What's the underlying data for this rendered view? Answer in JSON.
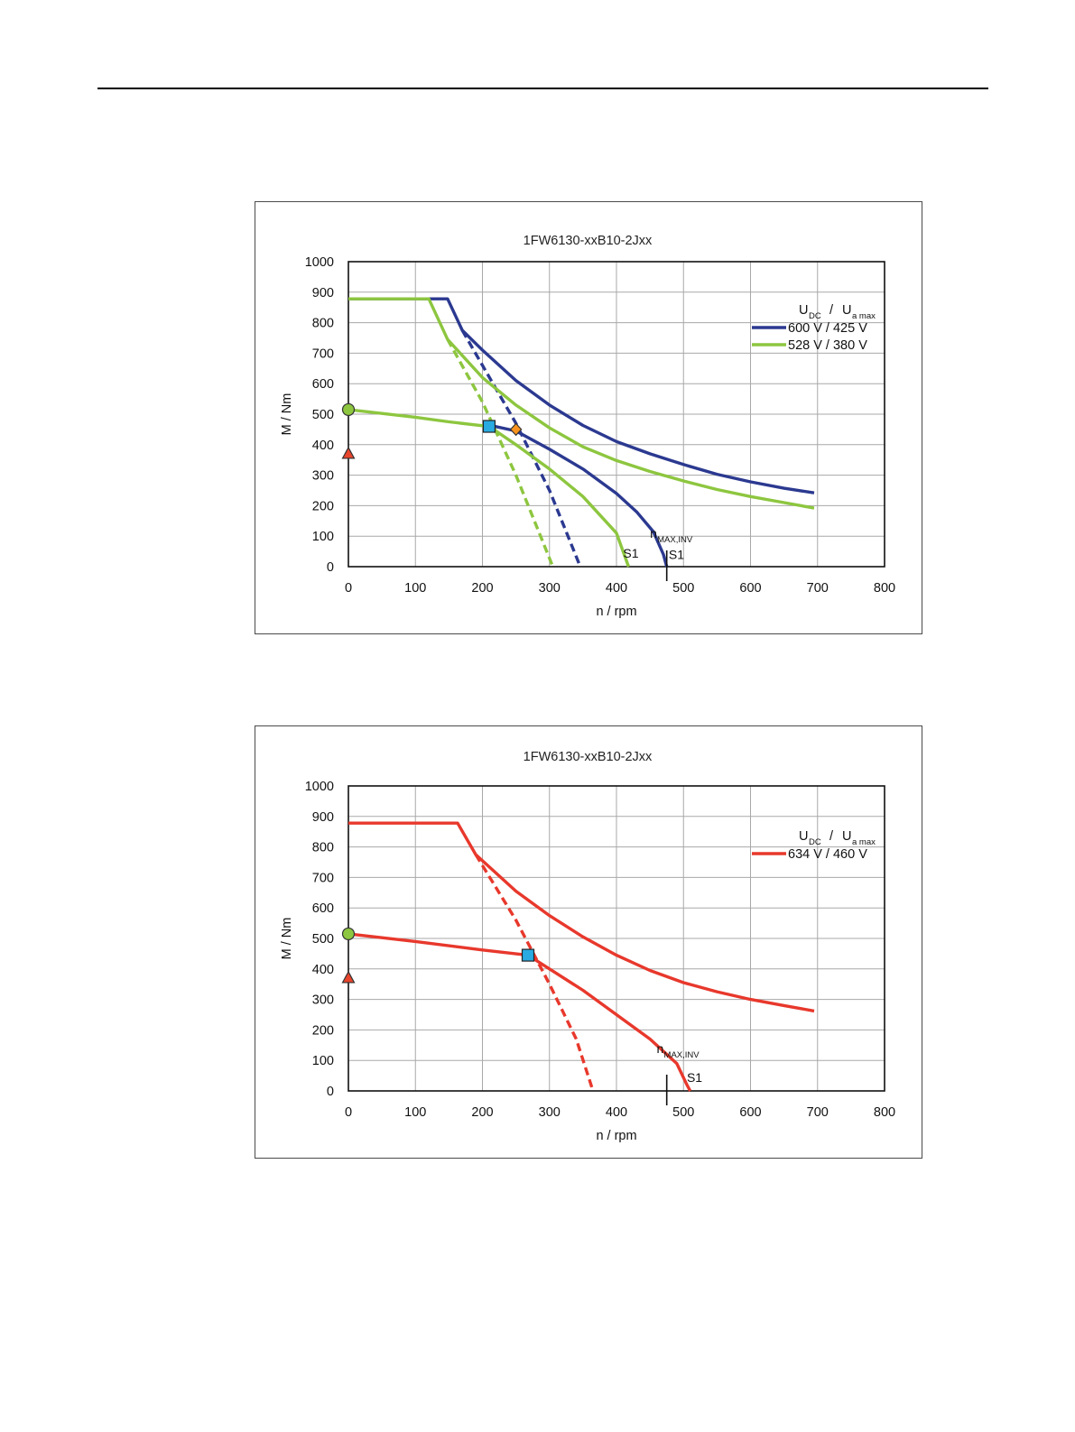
{
  "charts": [
    {
      "title": "1FW6130-xxB10-2Jxx",
      "xlabel": "n / rpm",
      "ylabel": "M / Nm",
      "xticks": [
        "0",
        "100",
        "200",
        "300",
        "400",
        "500",
        "600",
        "700",
        "800"
      ],
      "yticks": [
        "0",
        "100",
        "200",
        "300",
        "400",
        "500",
        "600",
        "700",
        "800",
        "900",
        "1000"
      ],
      "legend_head_u": "U",
      "legend_head_u_sub": "DC",
      "legend_head_sep": "/",
      "legend_head_ua": "U",
      "legend_head_ua_sub": "a max",
      "legend_items": [
        "600 V / 425 V",
        "528 V / 380 V"
      ],
      "ann_nmax": "n",
      "ann_nmax_sub": "MAX,INV",
      "ann_s1_a": "S1",
      "ann_s1_b": "S1"
    },
    {
      "title": "1FW6130-xxB10-2Jxx",
      "xlabel": "n / rpm",
      "ylabel": "M / Nm",
      "xticks": [
        "0",
        "100",
        "200",
        "300",
        "400",
        "500",
        "600",
        "700",
        "800"
      ],
      "yticks": [
        "0",
        "100",
        "200",
        "300",
        "400",
        "500",
        "600",
        "700",
        "800",
        "900",
        "1000"
      ],
      "legend_head_u": "U",
      "legend_head_u_sub": "DC",
      "legend_head_sep": "/",
      "legend_head_ua": "U",
      "legend_head_ua_sub": "a max",
      "legend_items": [
        "634 V / 460 V"
      ],
      "ann_nmax": "n",
      "ann_nmax_sub": "MAX,INV",
      "ann_s1_a": "S1"
    }
  ],
  "chart_data": [
    {
      "type": "line",
      "title": "1FW6130-xxB10-2Jxx",
      "xlabel": "n / rpm",
      "ylabel": "M / Nm",
      "xlim": [
        0,
        800
      ],
      "ylim": [
        0,
        1000
      ],
      "grid": true,
      "legend_position": "top-right",
      "colors": {
        "series_600": "#2b3990",
        "series_528": "#8dc63f"
      },
      "series": [
        {
          "name": "600 V / 425 V",
          "style": "solid",
          "color": "#2b3990",
          "x": [
            0,
            148,
            170,
            200,
            250,
            300,
            350,
            400,
            450,
            500,
            550,
            600,
            650,
            695
          ],
          "y": [
            878,
            878,
            775,
            710,
            610,
            530,
            463,
            410,
            370,
            335,
            303,
            278,
            257,
            242
          ]
        },
        {
          "name": "600 V / 425 V",
          "style": "solid",
          "color": "#2b3990",
          "x": [
            208,
            250,
            300,
            350,
            400,
            430,
            455,
            470,
            475
          ],
          "y": [
            465,
            445,
            385,
            320,
            240,
            180,
            115,
            40,
            0
          ]
        },
        {
          "style": "dashed",
          "color": "#2b3990",
          "x": [
            170,
            200,
            250,
            300,
            346
          ],
          "y": [
            775,
            660,
            470,
            250,
            0
          ]
        },
        {
          "name": "528 V / 380 V",
          "style": "solid",
          "color": "#8dc63f",
          "x": [
            0,
            120,
            148,
            200,
            250,
            300,
            350,
            400,
            450,
            500,
            550,
            600,
            650,
            695
          ],
          "y": [
            878,
            878,
            745,
            620,
            530,
            455,
            393,
            348,
            312,
            281,
            253,
            230,
            210,
            192
          ]
        },
        {
          "name": "528 V / 380 V",
          "style": "solid",
          "color": "#8dc63f",
          "x": [
            0,
            100,
            150,
            200,
            210,
            250,
            300,
            350,
            400,
            418
          ],
          "y": [
            515,
            490,
            475,
            462,
            460,
            400,
            320,
            230,
            110,
            0
          ]
        },
        {
          "style": "dashed",
          "color": "#8dc63f",
          "x": [
            148,
            200,
            250,
            305
          ],
          "y": [
            745,
            540,
            300,
            0
          ]
        }
      ],
      "markers": [
        {
          "shape": "circle",
          "color": "#8dc63f",
          "x": 0,
          "y": 515
        },
        {
          "shape": "triangle",
          "color": "#e8452c",
          "x": 0,
          "y": 370
        },
        {
          "shape": "square",
          "color": "#29abe2",
          "x": 210,
          "y": 460
        },
        {
          "shape": "diamond",
          "color": "#f7931e",
          "x": 250,
          "y": 450
        }
      ],
      "vline_nmax_inv": 475
    },
    {
      "type": "line",
      "title": "1FW6130-xxB10-2Jxx",
      "xlabel": "n / rpm",
      "ylabel": "M / Nm",
      "xlim": [
        0,
        800
      ],
      "ylim": [
        0,
        1000
      ],
      "grid": true,
      "legend_position": "top-right",
      "colors": {
        "series_634": "#e8382c"
      },
      "series": [
        {
          "name": "634 V / 460 V",
          "style": "solid",
          "color": "#e8382c",
          "x": [
            0,
            163,
            190,
            250,
            300,
            350,
            400,
            450,
            500,
            550,
            600,
            650,
            695
          ],
          "y": [
            878,
            878,
            775,
            655,
            575,
            505,
            445,
            395,
            355,
            325,
            300,
            280,
            262
          ]
        },
        {
          "name": "634 V / 460 V",
          "style": "solid",
          "color": "#e8382c",
          "x": [
            0,
            100,
            200,
            268,
            300,
            350,
            400,
            450,
            490,
            505,
            510
          ],
          "y": [
            515,
            490,
            462,
            445,
            400,
            330,
            250,
            170,
            90,
            20,
            0
          ]
        },
        {
          "style": "dashed",
          "color": "#e8382c",
          "x": [
            190,
            250,
            300,
            340,
            365
          ],
          "y": [
            775,
            560,
            350,
            170,
            0
          ]
        }
      ],
      "markers": [
        {
          "shape": "circle",
          "color": "#8dc63f",
          "x": 0,
          "y": 515
        },
        {
          "shape": "triangle",
          "color": "#e8452c",
          "x": 0,
          "y": 370
        },
        {
          "shape": "square",
          "color": "#29abe2",
          "x": 268,
          "y": 445
        }
      ],
      "vline_nmax_inv": 475
    }
  ]
}
